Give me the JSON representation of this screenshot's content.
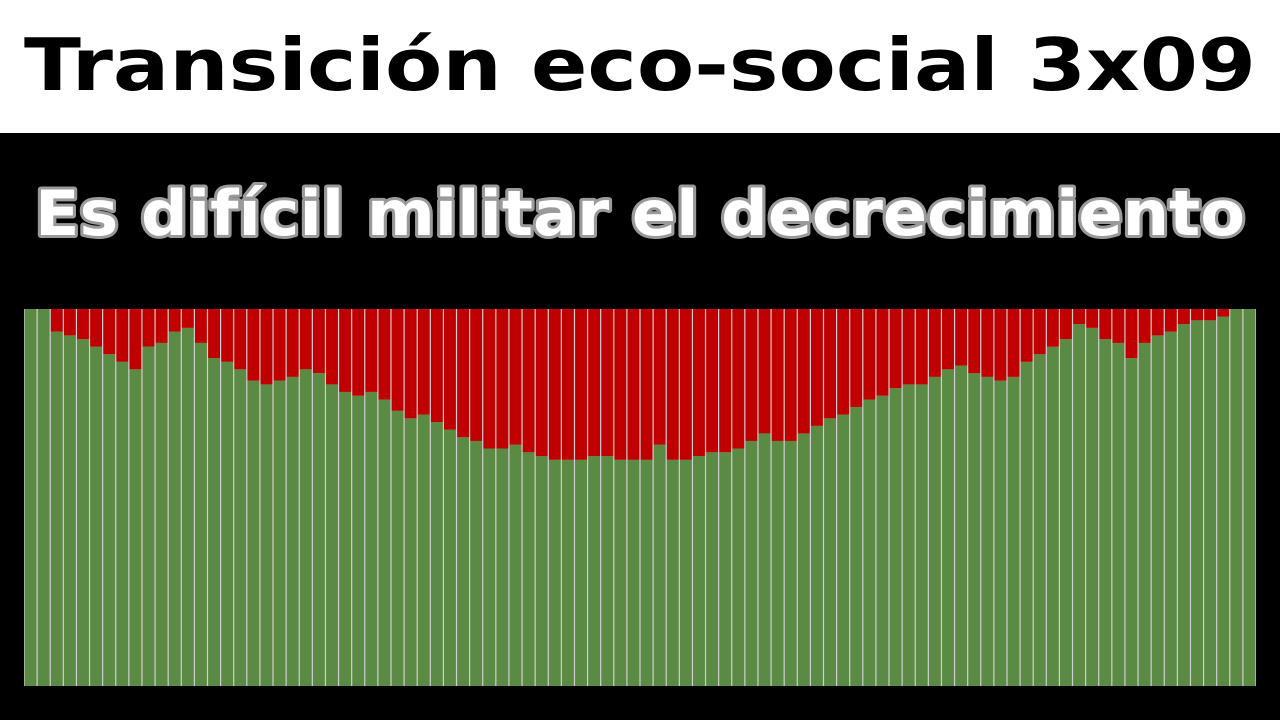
{
  "chart_data": {
    "type": "stacked_bar",
    "title": "Transición eco-social 3x09",
    "subtitle": "Es difícil militar el decrecimiento",
    "ylim": [
      0,
      100
    ],
    "series": [
      {
        "color": "#5b8a44",
        "values": [
          100,
          100,
          94,
          93,
          92,
          90,
          88,
          86,
          84,
          90,
          91,
          94,
          95,
          91,
          87,
          86,
          84,
          81,
          80,
          81,
          82,
          84,
          83,
          80,
          78,
          77,
          78,
          76,
          73,
          71,
          72,
          70,
          68,
          66,
          65,
          63,
          63,
          64,
          62,
          61,
          60,
          60,
          60,
          61,
          61,
          60,
          60,
          60,
          64,
          60,
          60,
          61,
          62,
          62,
          63,
          65,
          67,
          65,
          65,
          67,
          69,
          71,
          72,
          74,
          76,
          77,
          79,
          80,
          80,
          82,
          84,
          85,
          83,
          82,
          81,
          82,
          86,
          88,
          90,
          92,
          96,
          95,
          92,
          91,
          87,
          91,
          93,
          94,
          96,
          97,
          97,
          98,
          100,
          100
        ]
      },
      {
        "color": "#c00000",
        "values": [
          0,
          0,
          6,
          7,
          8,
          10,
          12,
          14,
          16,
          10,
          9,
          6,
          5,
          9,
          13,
          14,
          16,
          19,
          20,
          19,
          18,
          16,
          17,
          20,
          22,
          23,
          22,
          24,
          27,
          29,
          28,
          30,
          32,
          34,
          35,
          37,
          37,
          36,
          38,
          39,
          40,
          40,
          40,
          39,
          39,
          40,
          40,
          40,
          36,
          40,
          40,
          39,
          38,
          38,
          37,
          35,
          33,
          35,
          35,
          33,
          31,
          29,
          28,
          26,
          24,
          23,
          21,
          20,
          20,
          18,
          16,
          15,
          17,
          18,
          19,
          18,
          14,
          12,
          10,
          8,
          4,
          5,
          8,
          9,
          13,
          9,
          7,
          6,
          4,
          3,
          3,
          2,
          0,
          0
        ]
      }
    ]
  }
}
